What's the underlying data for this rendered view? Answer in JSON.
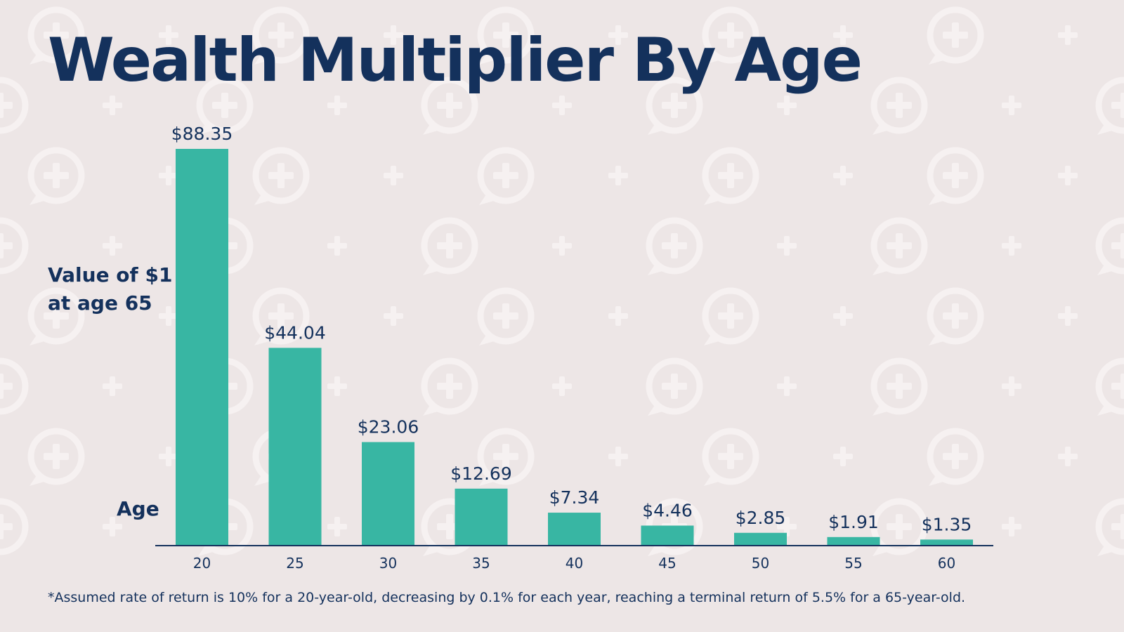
{
  "title": "Wealth Multiplier By Age",
  "colors": {
    "background": "#ede6e6",
    "bar": "#38b6a3",
    "text": "#14315c",
    "pattern": "#f6f1f1"
  },
  "background_icon": "chat-bubble-plus-icon",
  "chart_data": {
    "type": "bar",
    "title": "Wealth Multiplier By Age",
    "ylabel": [
      "Value of $1",
      "at age 65"
    ],
    "xlabel": "Age",
    "categories": [
      "20",
      "25",
      "30",
      "35",
      "40",
      "45",
      "50",
      "55",
      "60"
    ],
    "values": [
      88.35,
      44.04,
      23.06,
      12.69,
      7.34,
      4.46,
      2.85,
      1.91,
      1.35
    ],
    "data_labels": [
      "$88.35",
      "$44.04",
      "$23.06",
      "$12.69",
      "$7.34",
      "$4.46",
      "$2.85",
      "$1.91",
      "$1.35"
    ],
    "ylim": [
      0,
      88.35
    ],
    "grid": false
  },
  "footnote": "*Assumed rate of return is 10% for a 20-year-old, decreasing by 0.1% for each year, reaching a terminal return of 5.5% for a 65-year-old."
}
